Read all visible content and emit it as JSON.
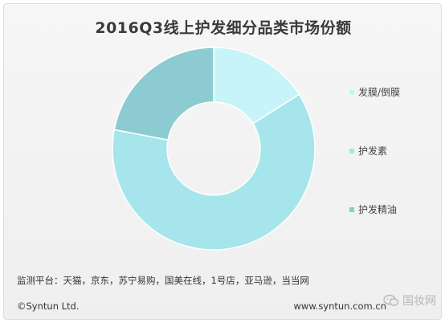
{
  "chart_data": {
    "type": "pie",
    "title": "2016Q3线上护发细分品类市场份额",
    "categories": [
      "发膜/倒膜",
      "护发素",
      "护发精油"
    ],
    "values": [
      16,
      62,
      22
    ],
    "colors": [
      "#c7f4f8",
      "#a6e5ec",
      "#8ccbd2"
    ],
    "legend_position": "right"
  },
  "footer": {
    "source": "监测平台：天猫，京东，苏宁易购，国美在线，1号店，亚马逊，当当网",
    "copyright": "©Syntun Ltd.",
    "website": "www.syntun.com.cn"
  },
  "watermark": {
    "text": "国妆网",
    "icon": "wechat-icon"
  }
}
